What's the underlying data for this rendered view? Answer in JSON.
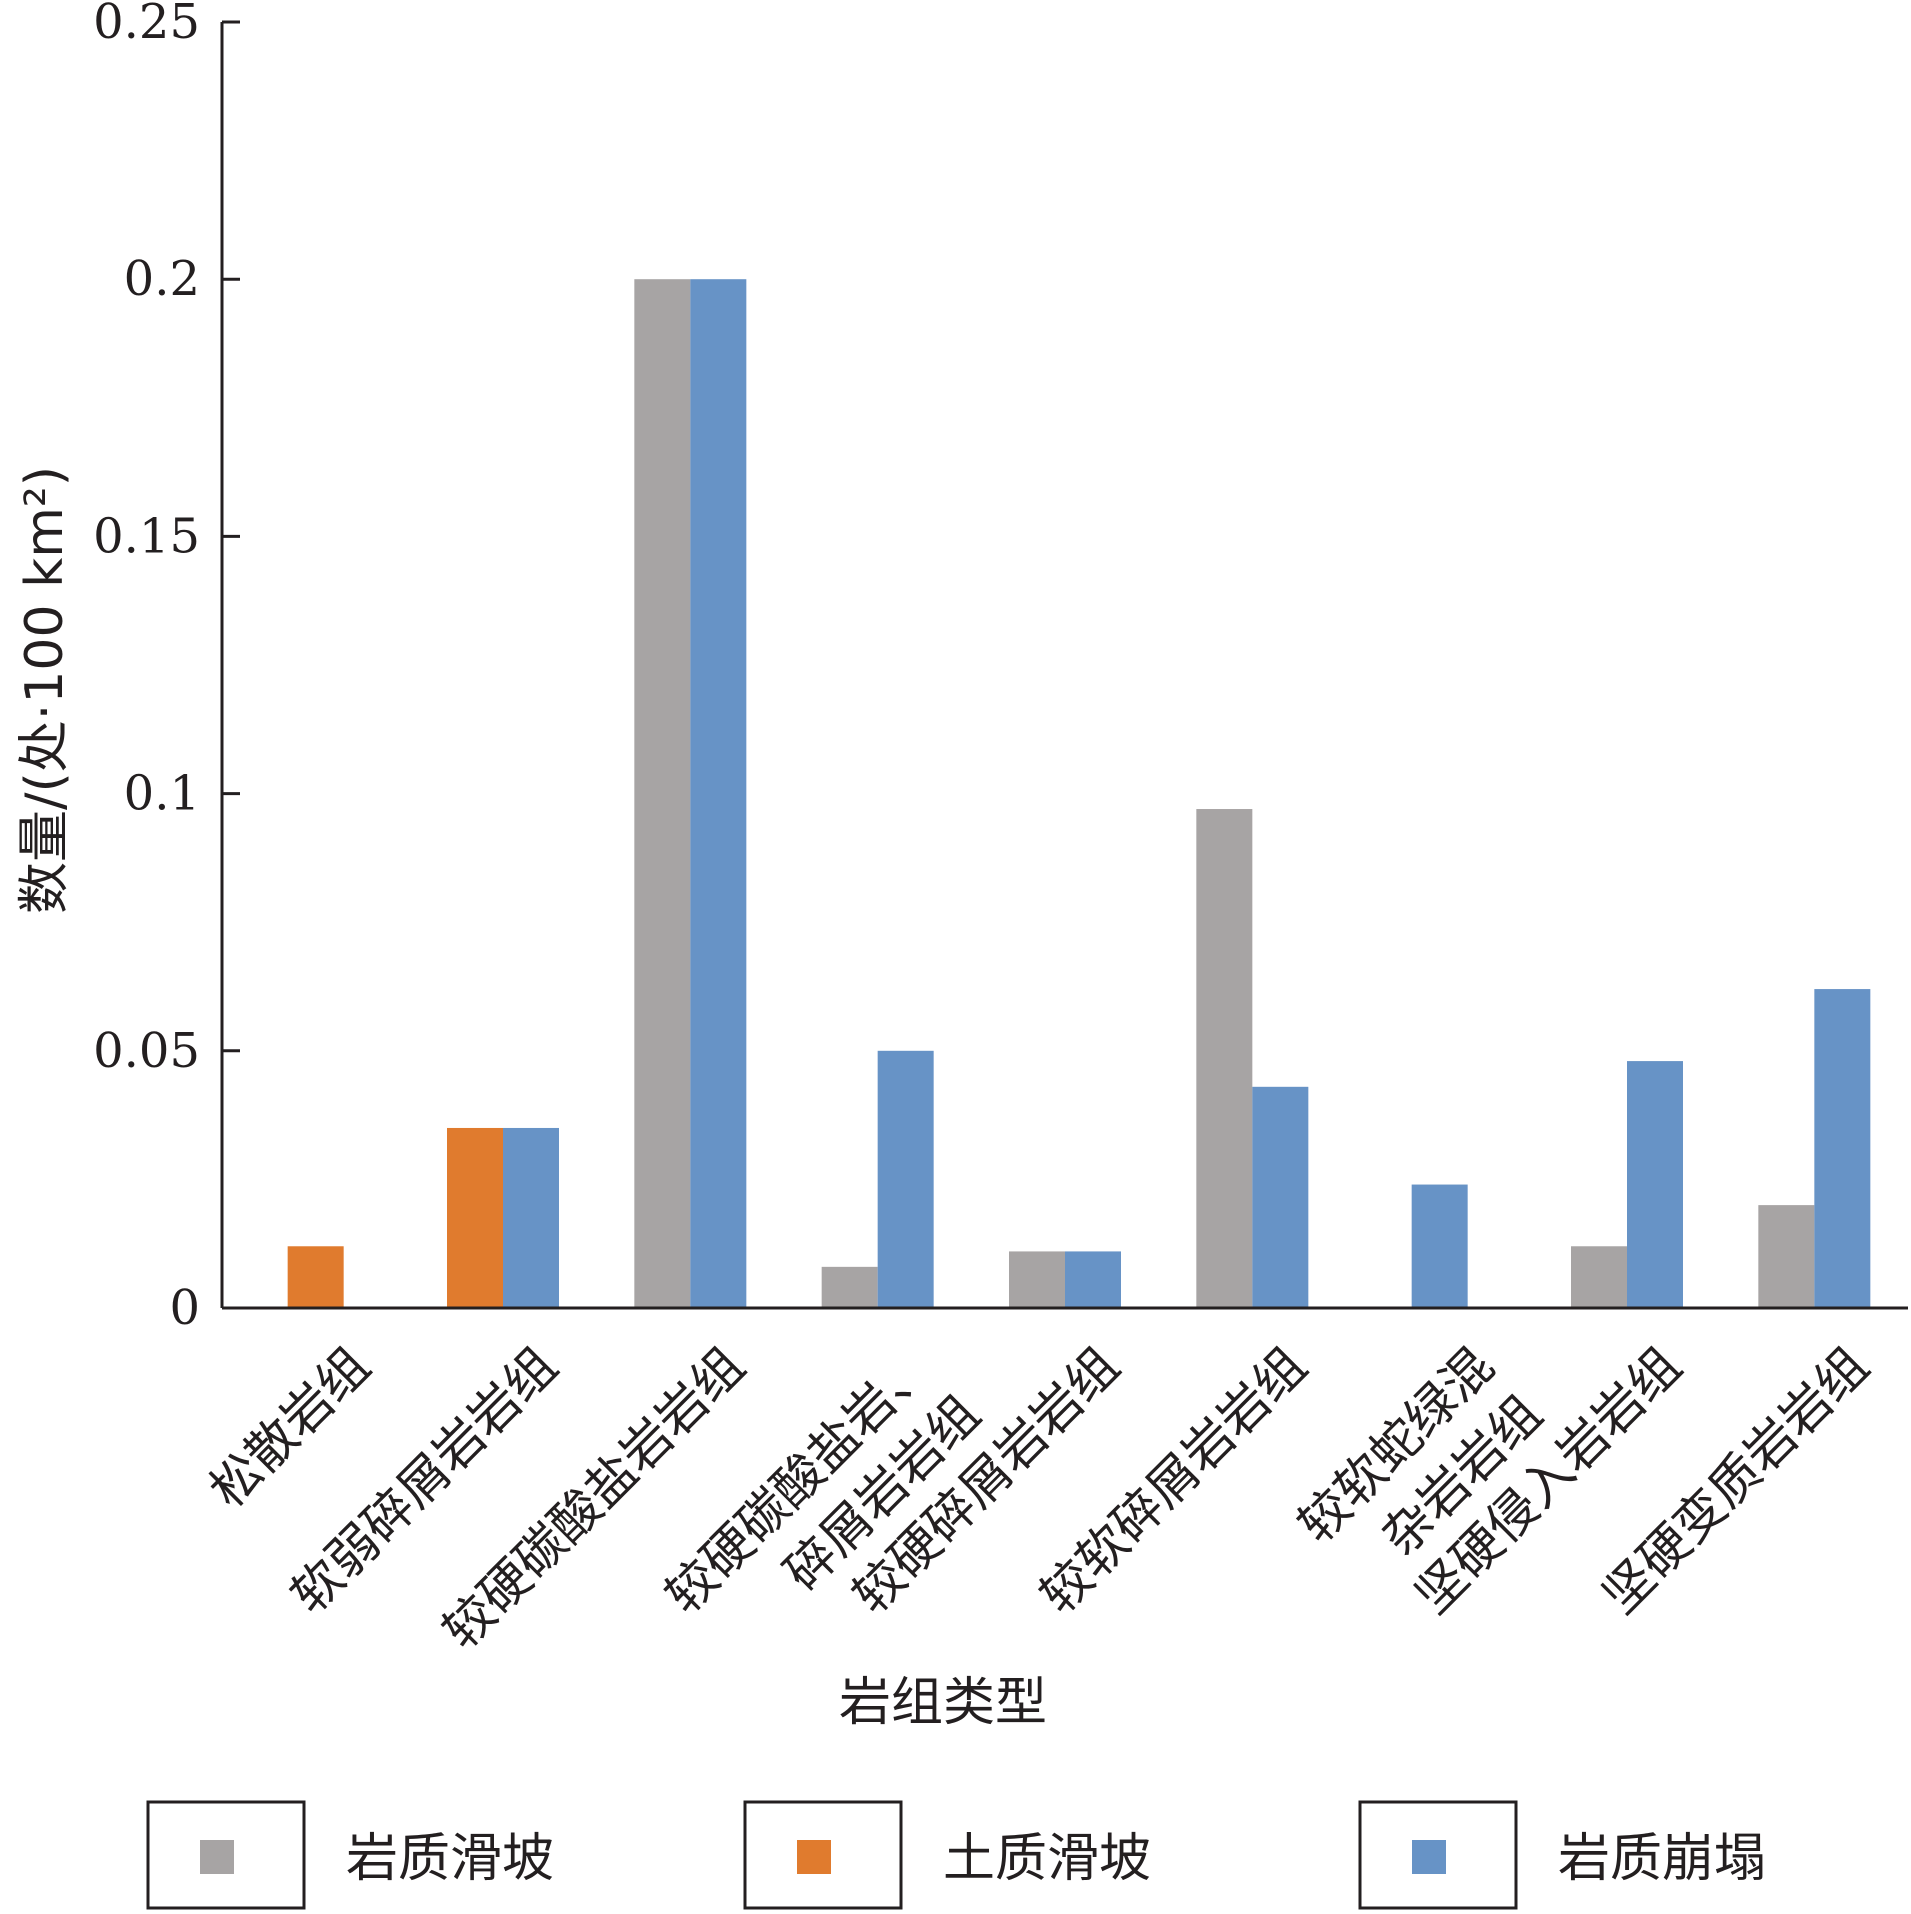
{
  "chart_data": {
    "type": "bar",
    "title": "",
    "xlabel": "岩组类型",
    "ylabel": "数量/(处·100 km²)",
    "ylim": [
      0,
      0.25
    ],
    "yticks": [
      "0",
      "0.05",
      "0.1",
      "0.15",
      "0.2",
      "0.25"
    ],
    "grid": false,
    "legend_position": "bottom",
    "categories": [
      [
        "松散岩组"
      ],
      [
        "软弱碎屑岩岩组"
      ],
      [
        "较硬碳酸盐岩岩组"
      ],
      [
        "较硬碳酸盐岩、",
        "碎屑岩岩组"
      ],
      [
        "较硬碎屑岩岩组"
      ],
      [
        "较软碎屑岩岩组"
      ],
      [
        "较软蛇绿混",
        "杂岩岩组"
      ],
      [
        "坚硬侵入岩岩组"
      ],
      [
        "坚硬变质岩岩组"
      ]
    ],
    "series": [
      {
        "name": "岩质滑坡",
        "color": "#a7a4a4",
        "values": [
          0,
          0,
          0.2,
          0.008,
          0.011,
          0.097,
          0,
          0.012,
          0.02
        ]
      },
      {
        "name": "土质滑坡",
        "color": "#e07b2e",
        "values": [
          0.012,
          0.035,
          0,
          0,
          0,
          0,
          0,
          0,
          0
        ]
      },
      {
        "name": "岩质崩塌",
        "color": "#6793c6",
        "values": [
          0,
          0.035,
          0.2,
          0.05,
          0.011,
          0.043,
          0.024,
          0.048,
          0.062
        ]
      }
    ]
  }
}
